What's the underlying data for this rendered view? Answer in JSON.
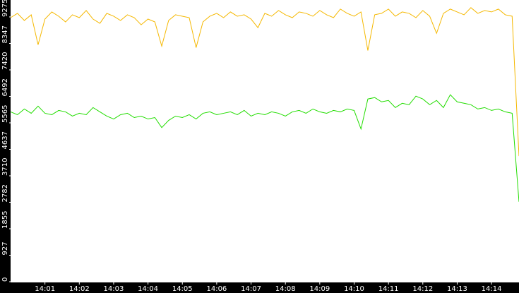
{
  "chart_data": {
    "type": "line",
    "x": [
      840,
      840.2,
      840.4,
      840.6,
      840.8,
      841,
      841.2,
      841.4,
      841.6,
      841.8,
      842,
      842.2,
      842.4,
      842.6,
      842.8,
      843,
      843.2,
      843.4,
      843.6,
      843.8,
      844,
      844.2,
      844.4,
      844.6,
      844.8,
      845,
      845.2,
      845.4,
      845.6,
      845.8,
      846,
      846.2,
      846.4,
      846.6,
      846.8,
      847,
      847.2,
      847.4,
      847.6,
      847.8,
      848,
      848.2,
      848.4,
      848.6,
      848.8,
      849,
      849.2,
      849.4,
      849.6,
      849.8,
      850,
      850.2,
      850.4,
      850.6,
      850.8,
      851,
      851.2,
      851.4,
      851.6,
      851.8,
      852,
      852.2,
      852.4,
      852.6,
      852.8,
      853,
      853.2,
      853.4,
      853.6,
      853.8,
      854,
      854.2,
      854.4,
      854.6,
      854.8
    ],
    "series": [
      {
        "color": "#f5b800",
        "values": [
          9250,
          9400,
          9150,
          9350,
          8300,
          9200,
          9450,
          9300,
          9100,
          9350,
          9250,
          9500,
          9200,
          9050,
          9400,
          9300,
          9150,
          9350,
          9250,
          9000,
          9200,
          9100,
          8250,
          9150,
          9350,
          9300,
          9250,
          8200,
          9100,
          9300,
          9400,
          9250,
          9450,
          9300,
          9350,
          9200,
          8900,
          9400,
          9300,
          9500,
          9350,
          9250,
          9450,
          9400,
          9300,
          9500,
          9350,
          9250,
          9550,
          9400,
          9300,
          9450,
          8100,
          9350,
          9400,
          9550,
          9300,
          9450,
          9400,
          9250,
          9500,
          9300,
          8700,
          9400,
          9550,
          9450,
          9350,
          9600,
          9400,
          9500,
          9450,
          9550,
          9350,
          9300,
          4400
        ]
      },
      {
        "color": "#22dd00",
        "values": [
          5950,
          5850,
          6050,
          5900,
          6150,
          5900,
          5850,
          6000,
          5950,
          5800,
          5900,
          5850,
          6100,
          5950,
          5800,
          5700,
          5850,
          5900,
          5750,
          5800,
          5700,
          5750,
          5400,
          5650,
          5800,
          5750,
          5850,
          5700,
          5900,
          5950,
          5850,
          5900,
          5950,
          5850,
          6000,
          5800,
          5900,
          5850,
          5950,
          5900,
          5800,
          5950,
          6000,
          5900,
          6050,
          5950,
          5900,
          6000,
          5950,
          6050,
          6000,
          5350,
          6400,
          6450,
          6300,
          6350,
          6100,
          6250,
          6200,
          6500,
          6400,
          6200,
          6350,
          6100,
          6550,
          6300,
          6250,
          6200,
          6050,
          6100,
          6000,
          6050,
          5950,
          5900,
          2800
        ]
      }
    ],
    "xlim": [
      840,
      854.8
    ],
    "xticks": [
      {
        "value": 841,
        "label": "14:01"
      },
      {
        "value": 842,
        "label": "14:02"
      },
      {
        "value": 843,
        "label": "14:03"
      },
      {
        "value": 844,
        "label": "14:04"
      },
      {
        "value": 845,
        "label": "14:05"
      },
      {
        "value": 846,
        "label": "14:06"
      },
      {
        "value": 847,
        "label": "14:07"
      },
      {
        "value": 848,
        "label": "14:08"
      },
      {
        "value": 849,
        "label": "14:09"
      },
      {
        "value": 850,
        "label": "14:10"
      },
      {
        "value": 851,
        "label": "14:11"
      },
      {
        "value": 852,
        "label": "14:12"
      },
      {
        "value": 853,
        "label": "14:13"
      },
      {
        "value": 854,
        "label": "14:14"
      }
    ],
    "ylim": [
      0,
      9868
    ],
    "yticks": [
      0,
      927,
      1855,
      2782,
      3710,
      4637,
      5565,
      6492,
      7420,
      8347,
      9275
    ]
  }
}
